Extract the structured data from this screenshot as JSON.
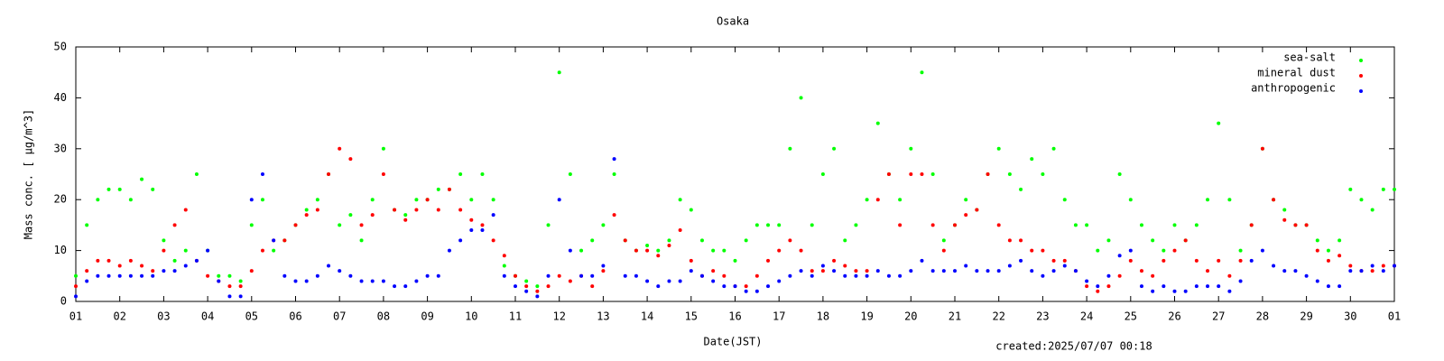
{
  "chart_data": {
    "type": "scatter",
    "title": "Osaka",
    "xlabel": "Date(JST)",
    "ylabel": "Mass conc. [ μg/m^3]",
    "footnote": "created:2025/07/07 00:18",
    "legend": "upper right",
    "grid": false,
    "x": [
      0,
      0.25,
      0.5,
      0.75,
      1,
      1.25,
      1.5,
      1.75,
      2,
      2.25,
      2.5,
      2.75,
      3,
      3.25,
      3.5,
      3.75,
      4,
      4.25,
      4.5,
      4.75,
      5,
      5.25,
      5.5,
      5.75,
      6,
      6.25,
      6.5,
      6.75,
      7,
      7.25,
      7.5,
      7.75,
      8,
      8.25,
      8.5,
      8.75,
      9,
      9.25,
      9.5,
      9.75,
      10,
      10.25,
      10.5,
      10.75,
      11,
      11.25,
      11.5,
      11.75,
      12,
      12.25,
      12.5,
      12.75,
      13,
      13.25,
      13.5,
      13.75,
      14,
      14.25,
      14.5,
      14.75,
      15,
      15.25,
      15.5,
      15.75,
      16,
      16.25,
      16.5,
      16.75,
      17,
      17.25,
      17.5,
      17.75,
      18,
      18.25,
      18.5,
      18.75,
      19,
      19.25,
      19.5,
      19.75,
      20,
      20.25,
      20.5,
      20.75,
      21,
      21.25,
      21.5,
      21.75,
      22,
      22.25,
      22.5,
      22.75,
      23,
      23.25,
      23.5,
      23.75,
      24,
      24.25,
      24.5,
      24.75,
      25,
      25.25,
      25.5,
      25.75,
      26,
      26.25,
      26.5,
      26.75,
      27,
      27.25,
      27.5,
      27.75,
      28,
      28.25,
      28.5,
      28.75,
      29,
      29.25,
      29.5,
      29.75,
      30
    ],
    "series": [
      {
        "name": "sea-salt",
        "color": "#00ff00",
        "values": [
          5,
          15,
          20,
          22,
          22,
          20,
          24,
          22,
          12,
          8,
          10,
          25,
          10,
          5,
          5,
          4,
          15,
          20,
          10,
          12,
          15,
          18,
          20,
          25,
          15,
          17,
          12,
          20,
          30,
          18,
          17,
          20,
          20,
          22,
          22,
          25,
          20,
          25,
          20,
          7,
          5,
          4,
          3,
          15,
          45,
          25,
          10,
          12,
          15,
          25,
          12,
          10,
          11,
          10,
          12,
          20,
          18,
          12,
          10,
          10,
          8,
          12,
          15,
          15,
          15,
          30,
          40,
          15,
          25,
          30,
          12,
          15,
          20,
          35,
          25,
          20,
          30,
          45,
          25,
          12,
          15,
          20,
          18,
          25,
          30,
          25,
          22,
          28,
          25,
          30,
          20,
          15,
          15,
          10,
          12,
          25,
          20,
          15,
          12,
          10,
          15,
          12,
          15,
          20,
          35,
          20,
          10,
          15,
          30,
          20,
          18,
          15,
          15,
          12,
          10,
          12,
          22,
          20,
          18,
          22,
          22
        ]
      },
      {
        "name": "mineral dust",
        "color": "#ff0000",
        "values": [
          3,
          6,
          8,
          8,
          7,
          8,
          7,
          6,
          10,
          15,
          18,
          8,
          5,
          4,
          3,
          3,
          6,
          10,
          12,
          12,
          15,
          17,
          18,
          25,
          30,
          28,
          15,
          17,
          25,
          18,
          16,
          18,
          20,
          18,
          22,
          18,
          16,
          15,
          12,
          9,
          5,
          3,
          2,
          3,
          5,
          4,
          5,
          3,
          6,
          17,
          12,
          10,
          10,
          9,
          11,
          14,
          8,
          5,
          6,
          5,
          3,
          3,
          5,
          8,
          10,
          12,
          10,
          6,
          6,
          8,
          7,
          6,
          6,
          20,
          25,
          15,
          25,
          25,
          15,
          10,
          15,
          17,
          18,
          25,
          15,
          12,
          12,
          10,
          10,
          8,
          8,
          6,
          3,
          2,
          3,
          5,
          8,
          6,
          5,
          8,
          10,
          12,
          8,
          6,
          8,
          5,
          8,
          15,
          30,
          20,
          16,
          15,
          15,
          10,
          8,
          9,
          7,
          6,
          6,
          7,
          7
        ]
      },
      {
        "name": "anthropogenic",
        "color": "#0000ff",
        "values": [
          1,
          4,
          5,
          5,
          5,
          5,
          5,
          5,
          6,
          6,
          7,
          8,
          10,
          4,
          1,
          1,
          20,
          25,
          12,
          5,
          4,
          4,
          5,
          7,
          6,
          5,
          4,
          4,
          4,
          3,
          3,
          4,
          5,
          5,
          10,
          12,
          14,
          14,
          17,
          5,
          3,
          2,
          1,
          5,
          20,
          10,
          5,
          5,
          7,
          28,
          5,
          5,
          4,
          3,
          4,
          4,
          6,
          5,
          4,
          3,
          3,
          2,
          2,
          3,
          4,
          5,
          6,
          5,
          7,
          6,
          5,
          5,
          5,
          6,
          5,
          5,
          6,
          8,
          6,
          6,
          6,
          7,
          6,
          6,
          6,
          7,
          8,
          6,
          5,
          6,
          7,
          6,
          4,
          3,
          5,
          9,
          10,
          3,
          2,
          3,
          2,
          2,
          3,
          3,
          3,
          2,
          4,
          8,
          10,
          7,
          6,
          6,
          5,
          4,
          3,
          3,
          6,
          6,
          7,
          6,
          7
        ]
      }
    ],
    "xlim": [
      0,
      30
    ],
    "xticks": [
      {
        "value": 0,
        "label": "01"
      },
      {
        "value": 1,
        "label": "02"
      },
      {
        "value": 2,
        "label": "03"
      },
      {
        "value": 3,
        "label": "04"
      },
      {
        "value": 4,
        "label": "05"
      },
      {
        "value": 5,
        "label": "06"
      },
      {
        "value": 6,
        "label": "07"
      },
      {
        "value": 7,
        "label": "08"
      },
      {
        "value": 8,
        "label": "09"
      },
      {
        "value": 9,
        "label": "10"
      },
      {
        "value": 10,
        "label": "11"
      },
      {
        "value": 11,
        "label": "12"
      },
      {
        "value": 12,
        "label": "13"
      },
      {
        "value": 13,
        "label": "14"
      },
      {
        "value": 14,
        "label": "15"
      },
      {
        "value": 15,
        "label": "16"
      },
      {
        "value": 16,
        "label": "17"
      },
      {
        "value": 17,
        "label": "18"
      },
      {
        "value": 18,
        "label": "19"
      },
      {
        "value": 19,
        "label": "20"
      },
      {
        "value": 20,
        "label": "21"
      },
      {
        "value": 21,
        "label": "22"
      },
      {
        "value": 22,
        "label": "23"
      },
      {
        "value": 23,
        "label": "24"
      },
      {
        "value": 24,
        "label": "25"
      },
      {
        "value": 25,
        "label": "26"
      },
      {
        "value": 26,
        "label": "27"
      },
      {
        "value": 27,
        "label": "28"
      },
      {
        "value": 28,
        "label": "29"
      },
      {
        "value": 29,
        "label": "30"
      },
      {
        "value": 30,
        "label": "01"
      }
    ],
    "ylim": [
      0,
      50
    ],
    "yticks": [
      0,
      10,
      20,
      30,
      40,
      50
    ]
  }
}
